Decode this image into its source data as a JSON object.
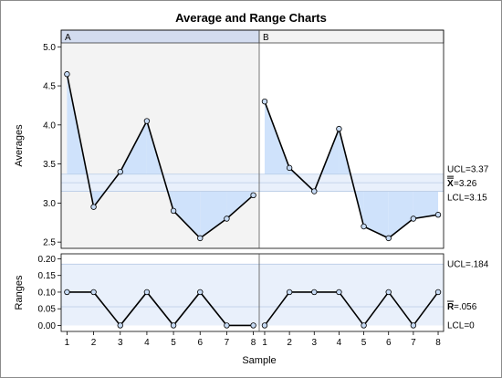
{
  "chart_data": {
    "type": "line",
    "title": "Average and Range Charts",
    "xlabel": "Sample",
    "x": [
      1,
      2,
      3,
      4,
      5,
      6,
      7,
      8
    ],
    "panels": [
      {
        "name": "A",
        "averages": [
          4.65,
          2.95,
          3.4,
          4.05,
          2.9,
          2.55,
          2.8,
          3.1
        ],
        "ranges": [
          0.1,
          0.1,
          0.0,
          0.1,
          0.0,
          0.1,
          0.0,
          0.0
        ]
      },
      {
        "name": "B",
        "averages": [
          4.3,
          3.45,
          3.15,
          3.95,
          2.7,
          2.55,
          2.8,
          2.85
        ],
        "ranges": [
          0.0,
          0.1,
          0.1,
          0.1,
          0.0,
          0.1,
          0.0,
          0.1
        ]
      }
    ],
    "averages_chart": {
      "ylabel": "Averages",
      "ylim": [
        2.42,
        5.05
      ],
      "yticks": [
        "2.5",
        "3.0",
        "3.5",
        "4.0",
        "4.5",
        "5.0"
      ],
      "ucl": 3.37,
      "center": 3.26,
      "lcl": 3.15,
      "ucl_label": "UCL=3.37",
      "center_label": "=3.26",
      "center_symbol": "X",
      "lcl_label": "LCL=3.15"
    },
    "ranges_chart": {
      "ylabel": "Ranges",
      "ylim": [
        -0.018,
        0.215
      ],
      "yticks": [
        "0.00",
        "0.05",
        "0.10",
        "0.15",
        "0.20"
      ],
      "ucl": 0.184,
      "center": 0.056,
      "lcl": 0.0,
      "ucl_label": "UCL=.184",
      "center_label": "=.056",
      "center_symbol": "R",
      "lcl_label": "LCL=0"
    },
    "colors": {
      "panel_a_bg": "#f3f3f3",
      "limit_band": "#e9f0fb",
      "limit_line": "#b9cbe6",
      "fill": "#cfe2fb",
      "header_a": "#d3dcef",
      "header_b": "#f3f3f3",
      "line": "#000000",
      "marker_fill": "#c7dbf5"
    }
  }
}
